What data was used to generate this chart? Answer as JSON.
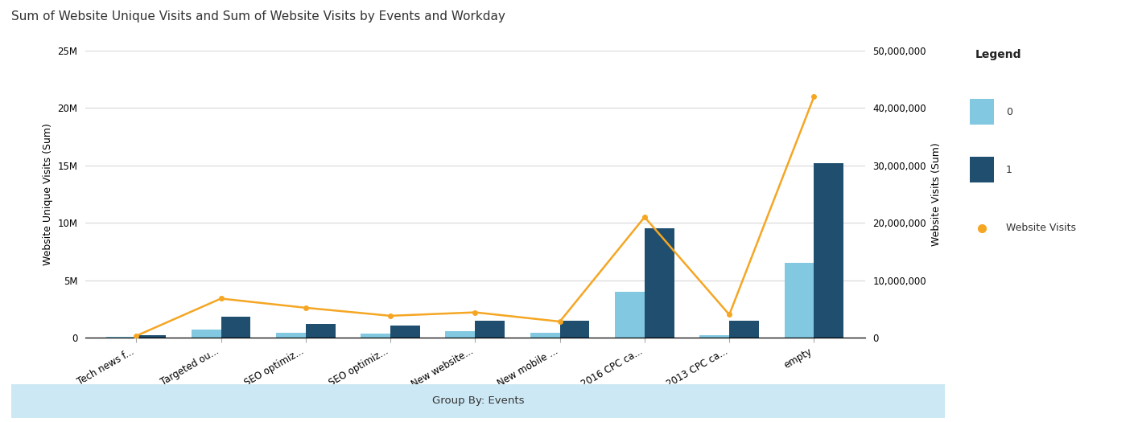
{
  "title": "Sum of Website Unique Visits and Sum of Website Visits by Events and Workday",
  "categories": [
    "Tech news f...",
    "Targeted ou...",
    "SEO optimiz...",
    "SEO optimiz...",
    "New website...",
    "New mobile ...",
    "2016 CPC ca...",
    "2013 CPC ca...",
    "empty"
  ],
  "bar0_values": [
    50000,
    700000,
    450000,
    350000,
    550000,
    450000,
    4000000,
    180000,
    6500000
  ],
  "bar1_values": [
    180000,
    1800000,
    1200000,
    1050000,
    1450000,
    1500000,
    9500000,
    1500000,
    15200000
  ],
  "line_values": [
    300000,
    6800000,
    5200000,
    3800000,
    4400000,
    2800000,
    21000000,
    4000000,
    42000000
  ],
  "left_ylim": [
    0,
    25000000
  ],
  "right_ylim": [
    0,
    50000000
  ],
  "left_yticks": [
    0,
    5000000,
    10000000,
    15000000,
    20000000,
    25000000
  ],
  "left_yticklabels": [
    "0",
    "5M",
    "10M",
    "15M",
    "20M",
    "25M"
  ],
  "right_yticks": [
    0,
    10000000,
    20000000,
    30000000,
    40000000,
    50000000
  ],
  "right_yticklabels": [
    "0",
    "10,000,000",
    "20,000,000",
    "30,000,000",
    "40,000,000",
    "50,000,000"
  ],
  "left_ylabel": "Website Unique Visits (Sum)",
  "right_ylabel": "Website Visits (Sum)",
  "xlabel": "Group By: Events",
  "bar0_color": "#82c8e0",
  "bar1_color": "#1f4e6e",
  "line_color": "#f5a623",
  "bar_width": 0.35,
  "title_fontsize": 11,
  "axis_label_fontsize": 9,
  "tick_fontsize": 8.5,
  "legend_title": "Legend",
  "legend_labels": [
    "0",
    "1",
    "Website Visits"
  ],
  "background_color": "#ffffff",
  "plot_bg_color": "#ffffff",
  "grid_color": "#d8d8d8",
  "xlabel_band_color": "#cce8f4"
}
